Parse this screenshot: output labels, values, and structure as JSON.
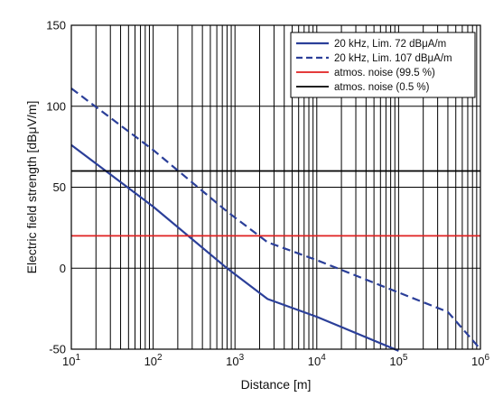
{
  "chart_data": {
    "type": "line",
    "xlabel": "Distance [m]",
    "ylabel": "Electric field strength [dBμV/m]",
    "x_scale": "log",
    "xlim": [
      10,
      1000000
    ],
    "ylim": [
      -50,
      150
    ],
    "x_ticks": [
      {
        "value": 10,
        "base": "10",
        "exp": "1"
      },
      {
        "value": 100,
        "base": "10",
        "exp": "2"
      },
      {
        "value": 1000,
        "base": "10",
        "exp": "3"
      },
      {
        "value": 10000,
        "base": "10",
        "exp": "4"
      },
      {
        "value": 100000,
        "base": "10",
        "exp": "5"
      },
      {
        "value": 1000000,
        "base": "10",
        "exp": "6"
      }
    ],
    "y_ticks": [
      -50,
      0,
      50,
      100,
      150
    ],
    "grid": true,
    "legend_position": "top-right",
    "series": [
      {
        "name": "20 kHz, Lim. 72 dBμA/m",
        "color": "#2b3f99",
        "style": "solid",
        "x": [
          10,
          100,
          800,
          2500,
          10000,
          100000
        ],
        "y": [
          76,
          38,
          0,
          -19,
          -30,
          -51
        ]
      },
      {
        "name": "20 kHz, Lim. 107 dBμA/m",
        "color": "#2b3f99",
        "style": "dashed",
        "x": [
          10,
          100,
          800,
          2500,
          10000,
          100000,
          400000,
          1000000
        ],
        "y": [
          111,
          73,
          35,
          16,
          5,
          -15,
          -27,
          -50
        ]
      },
      {
        "name": "atmos. noise (99.5 %)",
        "color": "#e02020",
        "style": "solid",
        "x": [
          10,
          1000000
        ],
        "y": [
          20,
          20
        ]
      },
      {
        "name": "atmos. noise (0.5 %)",
        "color": "#000000",
        "style": "solid",
        "x": [
          10,
          1000000
        ],
        "y": [
          60,
          60
        ]
      }
    ]
  }
}
